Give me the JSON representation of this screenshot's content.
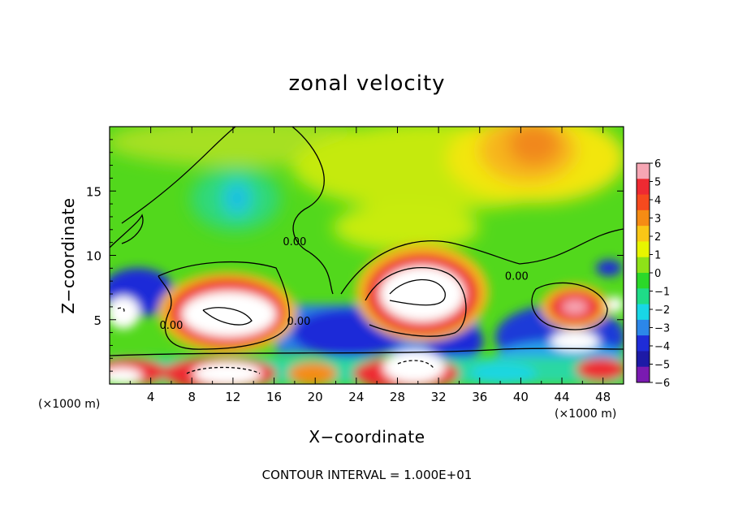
{
  "chart_data": {
    "type": "heatmap",
    "title": "zonal velocity",
    "xlabel": "X−coordinate",
    "ylabel": "Z−coordinate",
    "x_unit_label": "(×1000 m)",
    "footer": "CONTOUR INTERVAL = 1.000E+01",
    "xlim": [
      0,
      50
    ],
    "ylim": [
      0,
      20
    ],
    "x_ticks": [
      4,
      8,
      12,
      16,
      20,
      24,
      28,
      32,
      36,
      40,
      44,
      48
    ],
    "y_ticks": [
      5,
      10,
      15
    ],
    "colorbar": {
      "ticks": [
        6,
        5,
        4,
        3,
        2,
        1,
        0,
        -1,
        -2,
        -3,
        -4,
        -5,
        -6
      ],
      "tick_labels": [
        "6",
        "5",
        "4",
        "3",
        "2",
        "1",
        "0",
        "−1",
        "−2",
        "−3",
        "−4",
        "−5",
        "−6"
      ],
      "colors": [
        "#f6a6b4",
        "#ee2a32",
        "#f64a1e",
        "#f58c14",
        "#f9c716",
        "#e7f500",
        "#8ee218",
        "#2bd829",
        "#1fdc88",
        "#18d7e6",
        "#2c87e9",
        "#1f2cd8",
        "#1d1aa6",
        "#7a1ab1"
      ]
    },
    "contour_labels": [
      {
        "text": "0.00",
        "x": 18.0,
        "y": 10.8
      },
      {
        "text": "0.00",
        "x": 39.6,
        "y": 8.1
      },
      {
        "text": "0.00",
        "x": 6.0,
        "y": 4.3
      },
      {
        "text": "0.00",
        "x": 18.4,
        "y": 4.6
      }
    ],
    "features": [
      {
        "kind": "positive-core",
        "x": 12,
        "y": 5.4,
        "value": 10,
        "label": "white (>6)"
      },
      {
        "kind": "positive-core",
        "x": 30,
        "y": 7.4,
        "value": 10,
        "label": "white (>6)"
      },
      {
        "kind": "positive-max",
        "x": 42,
        "y": 18.5,
        "value": 3.3
      },
      {
        "kind": "negative-min",
        "x": 12,
        "y": 14,
        "value": -2.2
      },
      {
        "kind": "positive-core",
        "x": 44.5,
        "y": 5.8,
        "value": 4.8
      }
    ]
  }
}
